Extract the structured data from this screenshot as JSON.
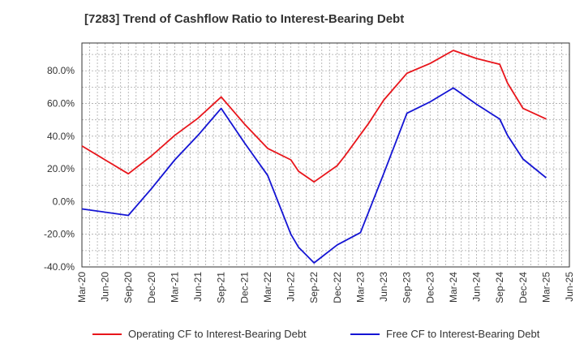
{
  "chart_data": {
    "type": "line",
    "title": "[7283]  Trend of Cashflow Ratio to Interest-Bearing Debt",
    "xlabel": "",
    "ylabel": "",
    "x_ticks": [
      "Mar-20",
      "Jun-20",
      "Sep-20",
      "Dec-20",
      "Mar-21",
      "Jun-21",
      "Sep-21",
      "Dec-21",
      "Mar-22",
      "Jun-22",
      "Sep-22",
      "Dec-22",
      "Mar-23",
      "Jun-23",
      "Sep-23",
      "Dec-23",
      "Mar-24",
      "Jun-24",
      "Sep-24",
      "Dec-24",
      "Mar-25",
      "Jun-25"
    ],
    "y_ticks": [
      -40,
      -20,
      0,
      20,
      40,
      60,
      80
    ],
    "y_tick_labels": [
      "-40.0%",
      "-20.0%",
      "0.0%",
      "20.0%",
      "40.0%",
      "60.0%",
      "80.0%"
    ],
    "ylim": [
      -40,
      97
    ],
    "grid": true,
    "legend_position": "bottom",
    "series": [
      {
        "name": "Operating CF to Interest-Bearing Debt",
        "color": "#e8151b",
        "x": [
          "Mar-20",
          "Sep-20",
          "Dec-20",
          "Mar-21",
          "Jun-21",
          "Sep-21",
          "Dec-21",
          "Mar-22",
          "Jun-22",
          "Jul-22",
          "Sep-22",
          "Dec-22",
          "Jan-23",
          "Mar-23",
          "Apr-23",
          "Jun-23",
          "Sep-23",
          "Dec-23",
          "Mar-24",
          "Jun-24",
          "Sep-24",
          "Oct-24",
          "Dec-24",
          "Mar-25"
        ],
        "values": [
          34.0,
          17.0,
          28.0,
          40.5,
          51.0,
          64.0,
          47.5,
          32.5,
          25.5,
          18.5,
          12.0,
          22.0,
          28.0,
          41.0,
          47.5,
          62.0,
          78.5,
          84.5,
          92.5,
          87.5,
          84.0,
          72.5,
          57.0,
          50.5
        ]
      },
      {
        "name": "Free CF to Interest-Bearing Debt",
        "color": "#1414d4",
        "x": [
          "Mar-20",
          "Sep-20",
          "Dec-20",
          "Mar-21",
          "Jun-21",
          "Sep-21",
          "Dec-21",
          "Mar-22",
          "Jun-22",
          "Jul-22",
          "Sep-22",
          "Dec-22",
          "Mar-23",
          "Jun-23",
          "Sep-23",
          "Dec-23",
          "Mar-24",
          "Jun-24",
          "Sep-24",
          "Oct-24",
          "Dec-24",
          "Mar-25"
        ],
        "values": [
          -4.5,
          -8.5,
          8.0,
          25.5,
          40.5,
          57.0,
          36.0,
          16.0,
          -20.0,
          -28.0,
          -37.5,
          -26.5,
          -19.0,
          17.0,
          54.0,
          61.0,
          69.5,
          59.5,
          50.5,
          40.5,
          26.0,
          14.5
        ]
      }
    ]
  }
}
